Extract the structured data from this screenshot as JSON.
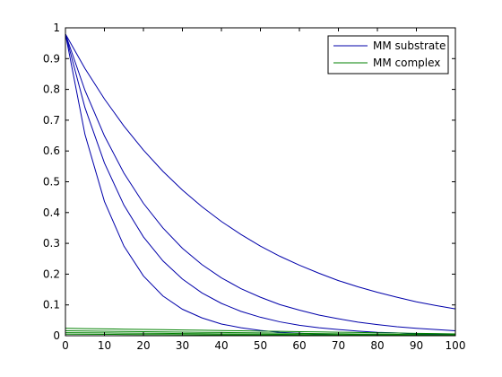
{
  "chart_data": {
    "type": "line",
    "title": "",
    "xlabel": "",
    "ylabel": "",
    "xlim": [
      0,
      100
    ],
    "ylim": [
      0,
      1
    ],
    "xticks": [
      0,
      10,
      20,
      30,
      40,
      50,
      60,
      70,
      80,
      90,
      100
    ],
    "yticks": [
      0,
      0.1,
      0.2,
      0.3,
      0.4,
      0.5,
      0.6,
      0.7,
      0.8,
      0.9,
      1
    ],
    "grid": false,
    "legend_position": "top-right",
    "legend": [
      {
        "label": "MM substrate",
        "color": "#0000aa"
      },
      {
        "label": "MM complex",
        "color": "#008000"
      }
    ],
    "x": [
      0,
      5,
      10,
      15,
      20,
      25,
      30,
      35,
      40,
      45,
      50,
      55,
      60,
      65,
      70,
      75,
      80,
      85,
      90,
      95,
      100
    ],
    "series": [
      {
        "group": "MM substrate",
        "color": "#0000aa",
        "values": [
          0.98,
          0.654,
          0.436,
          0.291,
          0.194,
          0.129,
          0.086,
          0.058,
          0.038,
          0.026,
          0.017,
          0.011,
          0.008,
          0.005,
          0.003,
          0.002,
          0.002,
          0.001,
          0.001,
          0.0,
          0.0
        ]
      },
      {
        "group": "MM substrate",
        "color": "#0000aa",
        "values": [
          0.98,
          0.741,
          0.561,
          0.424,
          0.321,
          0.243,
          0.184,
          0.139,
          0.105,
          0.079,
          0.06,
          0.045,
          0.034,
          0.026,
          0.02,
          0.015,
          0.011,
          0.009,
          0.006,
          0.005,
          0.004
        ]
      },
      {
        "group": "MM substrate",
        "color": "#0000aa",
        "values": [
          0.98,
          0.797,
          0.649,
          0.528,
          0.43,
          0.35,
          0.284,
          0.231,
          0.188,
          0.153,
          0.125,
          0.101,
          0.083,
          0.067,
          0.055,
          0.044,
          0.036,
          0.029,
          0.024,
          0.02,
          0.016
        ]
      },
      {
        "group": "MM substrate",
        "color": "#0000aa",
        "values": [
          0.98,
          0.868,
          0.769,
          0.681,
          0.603,
          0.534,
          0.473,
          0.419,
          0.371,
          0.329,
          0.291,
          0.258,
          0.229,
          0.203,
          0.179,
          0.159,
          0.141,
          0.125,
          0.11,
          0.098,
          0.087
        ]
      },
      {
        "group": "MM complex",
        "color": "#008000",
        "values": [
          0.005,
          0.0047,
          0.0044,
          0.0041,
          0.0038,
          0.0035,
          0.0032,
          0.003,
          0.0027,
          0.0025,
          0.0023,
          0.002,
          0.0018,
          0.0016,
          0.0014,
          0.0012,
          0.001,
          0.0009,
          0.0007,
          0.0006,
          0.0005
        ]
      },
      {
        "group": "MM complex",
        "color": "#008000",
        "values": [
          0.01,
          0.0095,
          0.009,
          0.0085,
          0.008,
          0.0075,
          0.007,
          0.0065,
          0.006,
          0.0055,
          0.005,
          0.0045,
          0.004,
          0.0036,
          0.0032,
          0.0028,
          0.0024,
          0.002,
          0.0017,
          0.0014,
          0.0012
        ]
      },
      {
        "group": "MM complex",
        "color": "#008000",
        "values": [
          0.016,
          0.0153,
          0.0146,
          0.0139,
          0.0132,
          0.0125,
          0.0118,
          0.0111,
          0.0104,
          0.0097,
          0.009,
          0.0083,
          0.0076,
          0.0069,
          0.0062,
          0.0056,
          0.005,
          0.0044,
          0.0039,
          0.0034,
          0.003
        ]
      },
      {
        "group": "MM complex",
        "color": "#008000",
        "values": [
          0.024,
          0.0231,
          0.0222,
          0.0213,
          0.0204,
          0.0195,
          0.0186,
          0.0177,
          0.0168,
          0.0159,
          0.015,
          0.0141,
          0.0132,
          0.0123,
          0.0114,
          0.0105,
          0.0096,
          0.0087,
          0.0078,
          0.0069,
          0.006
        ]
      }
    ]
  }
}
